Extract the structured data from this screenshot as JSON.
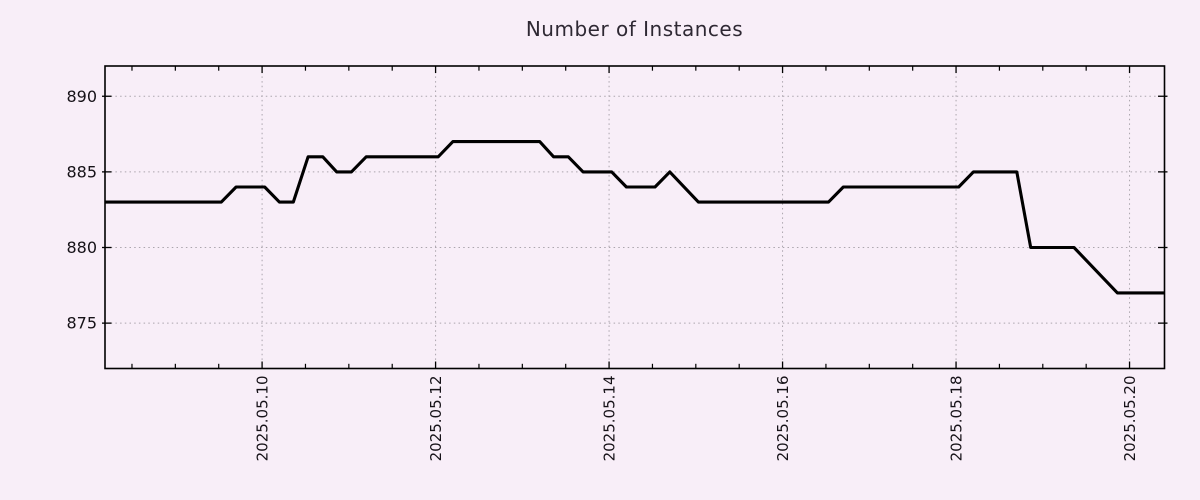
{
  "chart_data": {
    "type": "line",
    "title": "Number of Instances",
    "legend": false,
    "grid": true,
    "colors": {
      "background": "#f8eef8",
      "line": "#000000",
      "grid": "#aba5ad",
      "border": "#000000",
      "tick_text": "#161218",
      "title_text": "#2e2833"
    },
    "x_axis": {
      "unit": "days relative to 2025-05-10",
      "range_days": [
        -1.811,
        10.403
      ],
      "minor_tick_interval_days": 0.5,
      "major_ticks": [
        {
          "d": 0,
          "label": "2025.05.10"
        },
        {
          "d": 2,
          "label": "2025.05.12"
        },
        {
          "d": 4,
          "label": "2025.05.14"
        },
        {
          "d": 6,
          "label": "2025.05.16"
        },
        {
          "d": 8,
          "label": "2025.05.18"
        },
        {
          "d": 10,
          "label": "2025.05.20"
        }
      ]
    },
    "y_axis": {
      "range": [
        872,
        892
      ],
      "major_ticks": [
        {
          "v": 875,
          "label": "875"
        },
        {
          "v": 880,
          "label": "880"
        },
        {
          "v": 885,
          "label": "885"
        },
        {
          "v": 890,
          "label": "890"
        }
      ]
    },
    "series": [
      {
        "name": "instances",
        "points": [
          [
            -1.811,
            883
          ],
          [
            -0.47,
            883
          ],
          [
            -0.3,
            884
          ],
          [
            0.03,
            884
          ],
          [
            0.2,
            883
          ],
          [
            0.36,
            883
          ],
          [
            0.53,
            886
          ],
          [
            0.7,
            886
          ],
          [
            0.86,
            885
          ],
          [
            1.03,
            885
          ],
          [
            1.2,
            886
          ],
          [
            2.03,
            886
          ],
          [
            2.2,
            887
          ],
          [
            3.2,
            887
          ],
          [
            3.36,
            886
          ],
          [
            3.53,
            886
          ],
          [
            3.7,
            885
          ],
          [
            4.03,
            885
          ],
          [
            4.2,
            884
          ],
          [
            4.53,
            884
          ],
          [
            4.7,
            885
          ],
          [
            5.03,
            883
          ],
          [
            6.53,
            883
          ],
          [
            6.7,
            884
          ],
          [
            8.03,
            884
          ],
          [
            8.2,
            885
          ],
          [
            8.7,
            885
          ],
          [
            8.86,
            880
          ],
          [
            9.36,
            880
          ],
          [
            9.86,
            877
          ],
          [
            10.403,
            877
          ]
        ]
      }
    ]
  }
}
